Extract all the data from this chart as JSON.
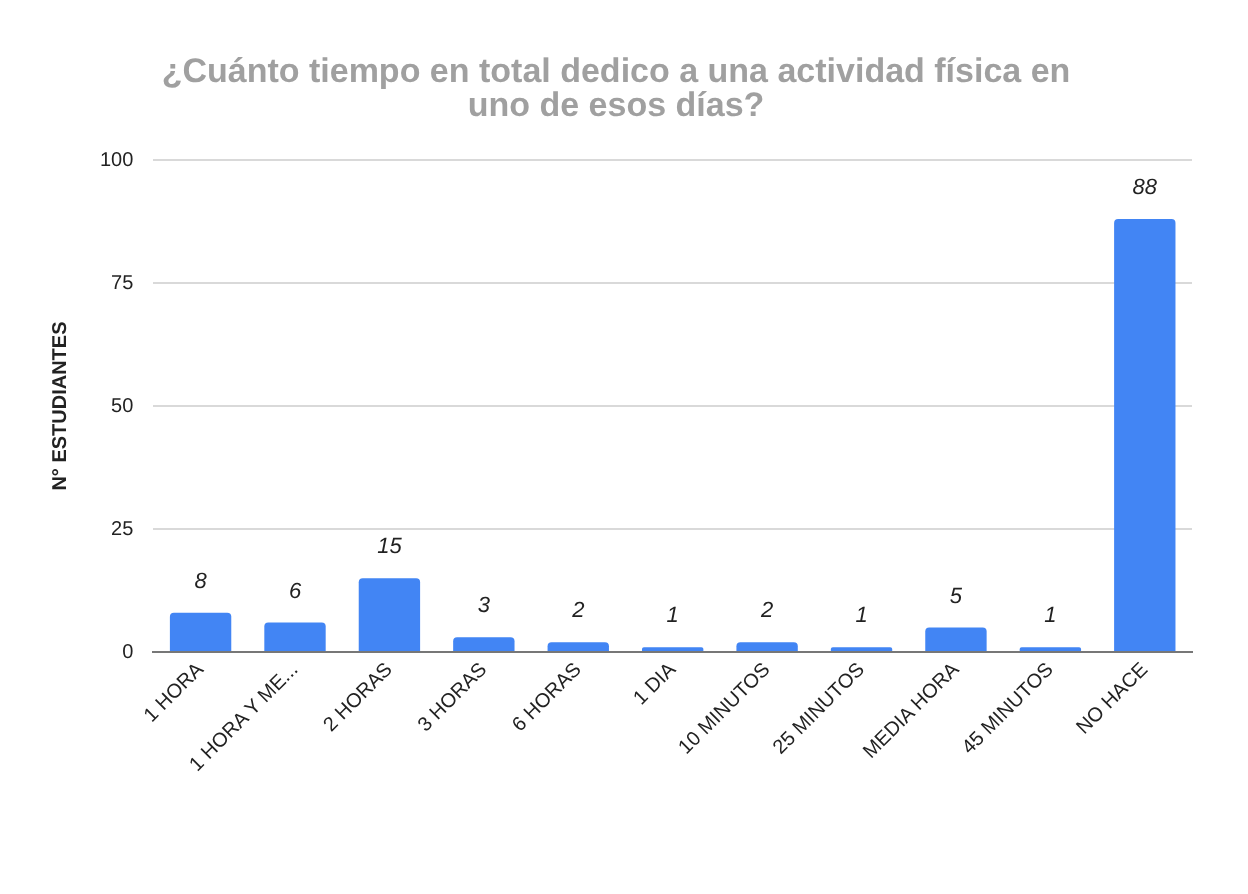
{
  "chart_data": {
    "type": "bar",
    "title": "¿Cuánto tiempo en total dedico a una actividad física en uno de esos días?",
    "ylabel": "N° ESTUDIANTES",
    "categories": [
      "1 HORA",
      "1 HORA Y ME...",
      "2 HORAS",
      "3 HORAS",
      "6 HORAS",
      "1 DIA",
      "10 MINUTOS",
      "25 MINUTOS",
      "MEDIA HORA",
      "45 MINUTOS",
      "NO HACE"
    ],
    "values": [
      8,
      6,
      15,
      3,
      2,
      1,
      2,
      1,
      5,
      1,
      88
    ],
    "color": "#4285f4",
    "ylim": [
      0,
      100
    ],
    "yticks": [
      0,
      25,
      50,
      75,
      100
    ],
    "grid": "y",
    "data_labels": true
  }
}
